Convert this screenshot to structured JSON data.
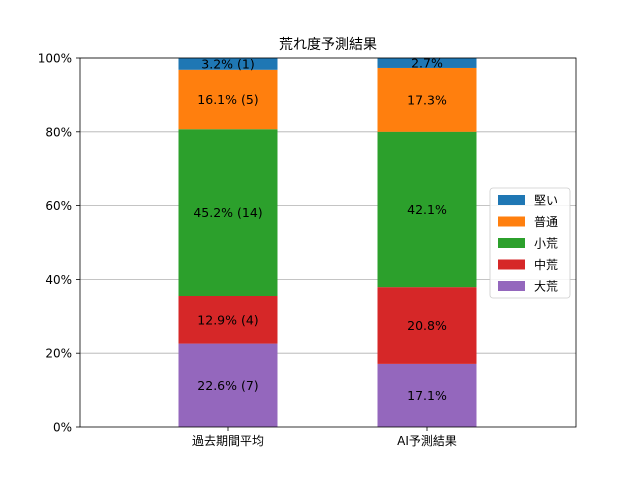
{
  "chart_data": {
    "type": "bar",
    "stacked": true,
    "title": "荒れ度予測結果",
    "xlabel": "",
    "ylabel": "",
    "categories": [
      "過去期間平均",
      "AI予測結果"
    ],
    "ylim": [
      0,
      100
    ],
    "yticks": [
      0,
      20,
      40,
      60,
      80,
      100
    ],
    "ytick_labels": [
      "0%",
      "20%",
      "40%",
      "60%",
      "80%",
      "100%"
    ],
    "grid": "y",
    "legend_position": "right",
    "series": [
      {
        "name": "大荒",
        "color": "#9467bd",
        "values": [
          22.6,
          17.1
        ],
        "labels": [
          "22.6% (7)",
          "17.1%"
        ]
      },
      {
        "name": "中荒",
        "color": "#d62728",
        "values": [
          12.9,
          20.8
        ],
        "labels": [
          "12.9% (4)",
          "20.8%"
        ]
      },
      {
        "name": "小荒",
        "color": "#2ca02c",
        "values": [
          45.2,
          42.1
        ],
        "labels": [
          "45.2% (14)",
          "42.1%"
        ]
      },
      {
        "name": "普通",
        "color": "#ff7f0e",
        "values": [
          16.1,
          17.3
        ],
        "labels": [
          "16.1% (5)",
          "17.3%"
        ]
      },
      {
        "name": "堅い",
        "color": "#1f77b4",
        "values": [
          3.2,
          2.7
        ],
        "labels": [
          "3.2% (1)",
          "2.7%"
        ]
      }
    ],
    "legend_order": [
      "堅い",
      "普通",
      "小荒",
      "中荒",
      "大荒"
    ]
  }
}
